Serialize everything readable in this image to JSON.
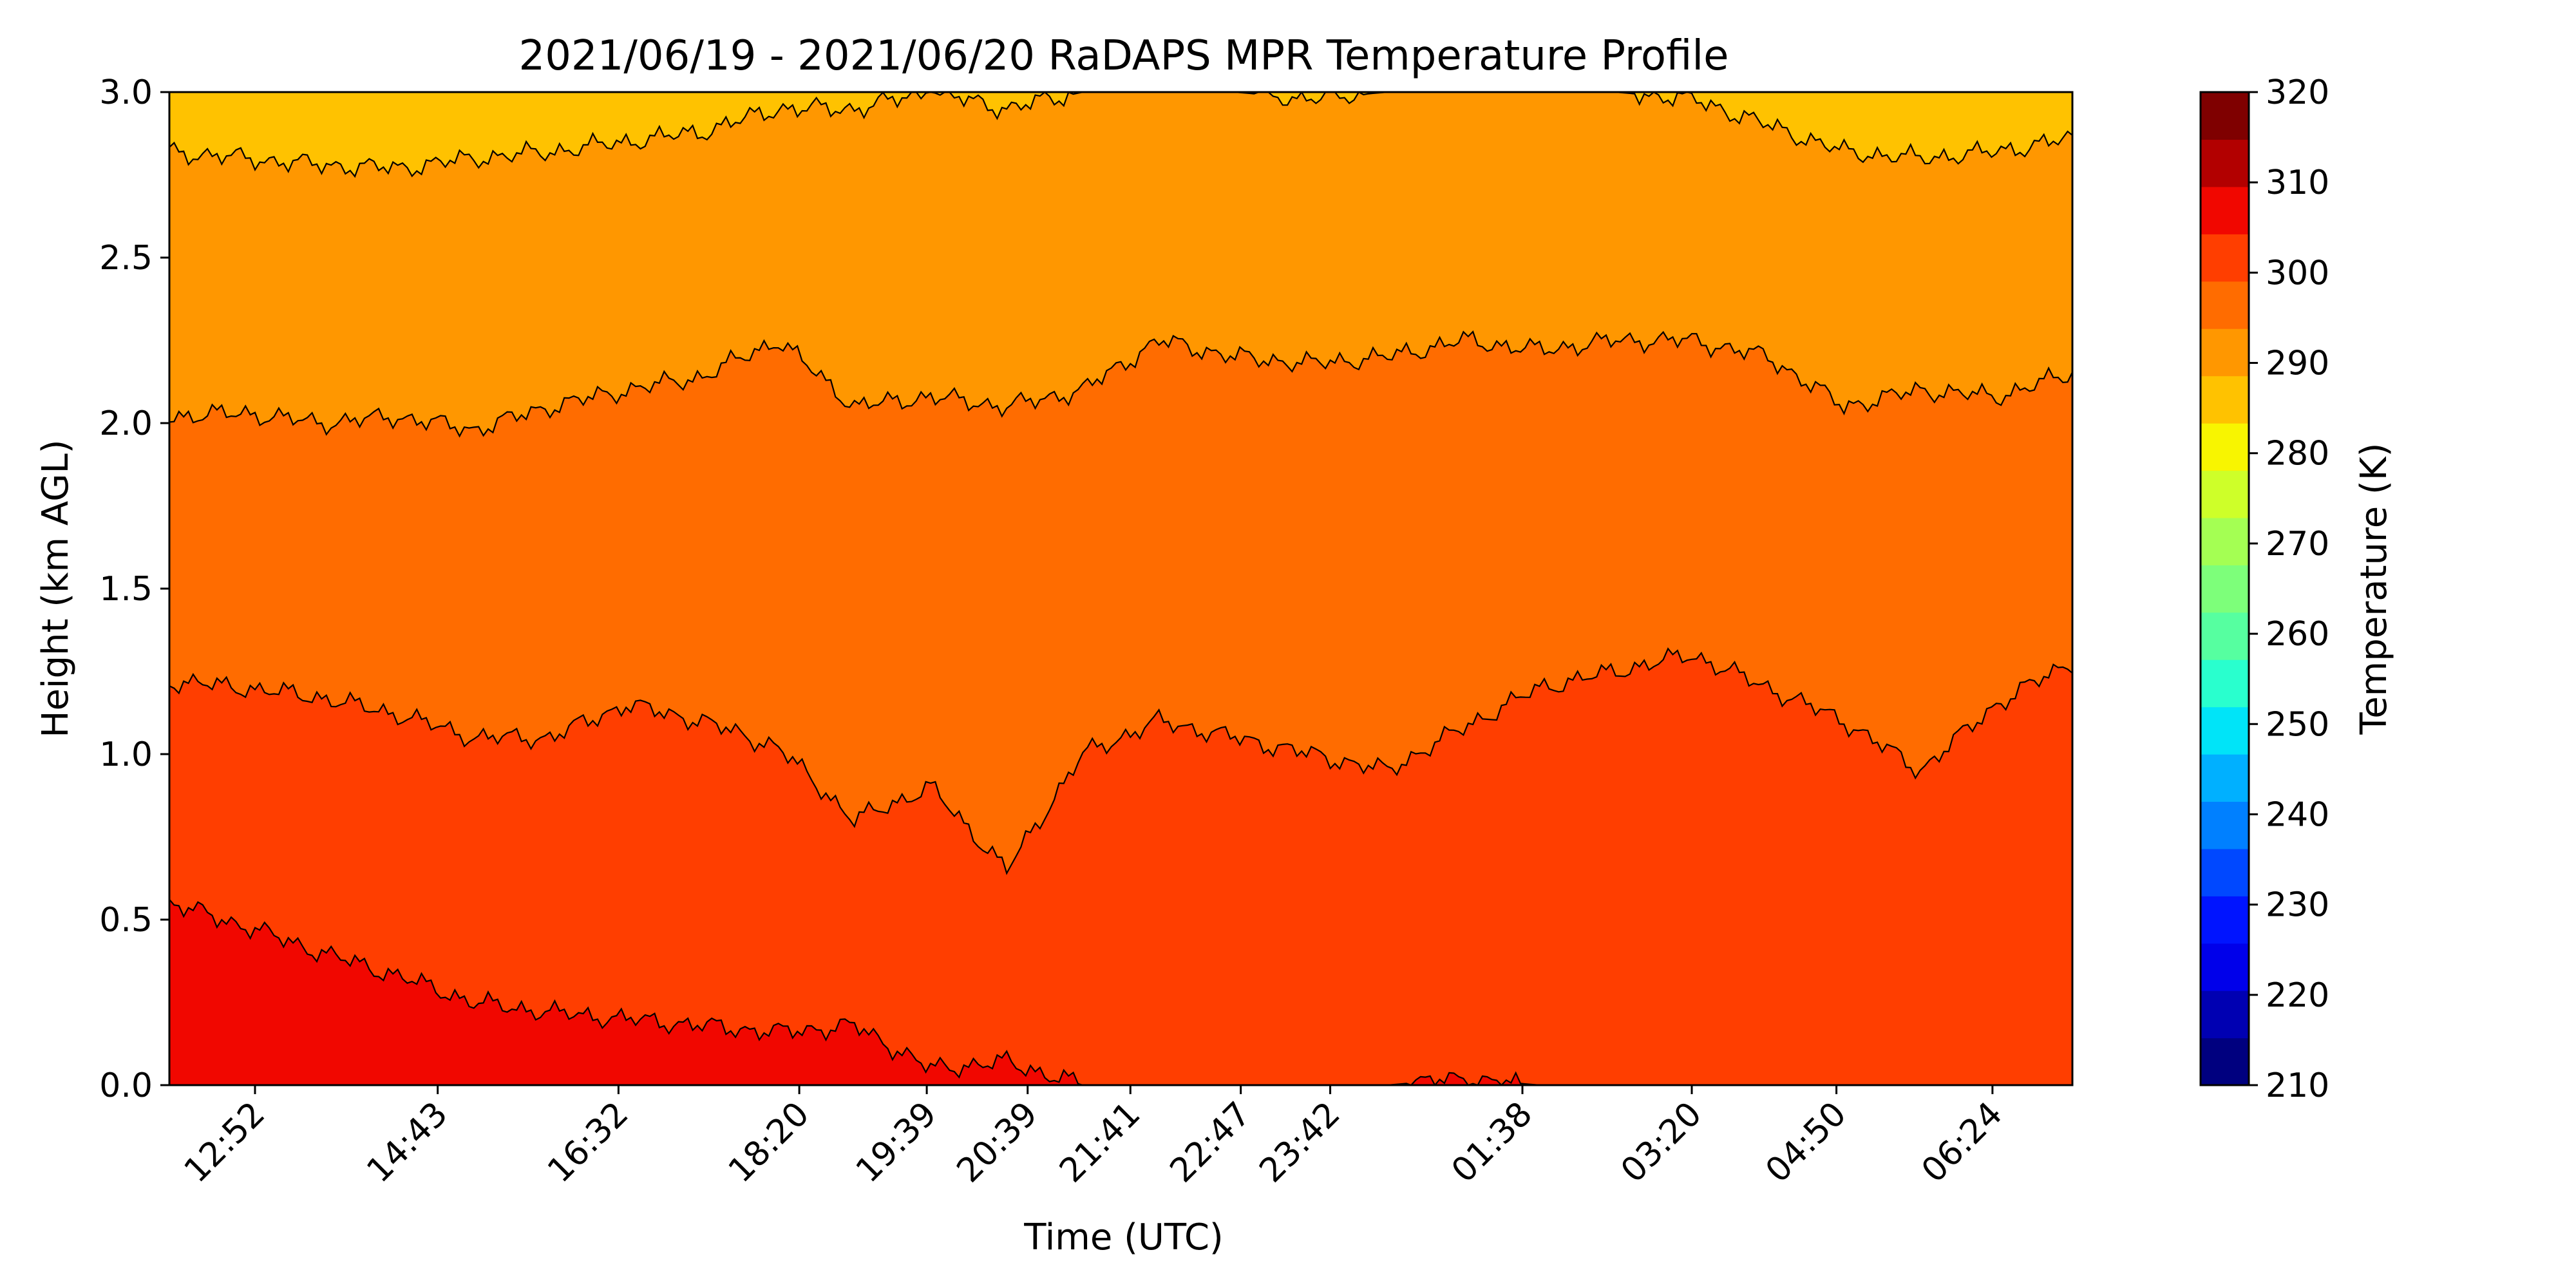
{
  "chart_data": {
    "type": "heatmap",
    "title": "2021/06/19 - 2021/06/20 RaDAPS MPR Temperature Profile",
    "xlabel": "Time (UTC)",
    "ylabel": "Height (km AGL)",
    "x_tick_labels": [
      "12:52",
      "14:43",
      "16:32",
      "18:20",
      "19:39",
      "20:39",
      "21:41",
      "22:47",
      "23:42",
      "01:38",
      "03:20",
      "04:50",
      "06:24"
    ],
    "x_tick_fractions": [
      0.045,
      0.141,
      0.236,
      0.331,
      0.398,
      0.451,
      0.505,
      0.563,
      0.61,
      0.711,
      0.8,
      0.876,
      0.958
    ],
    "y_ticks": [
      "0.0",
      "0.5",
      "1.0",
      "1.5",
      "2.0",
      "2.5",
      "3.0"
    ],
    "ylim": [
      0,
      3
    ],
    "colorbar": {
      "label": "Temperature (K)",
      "range": [
        210,
        320
      ],
      "step": 5,
      "tick_labels": [
        "210",
        "220",
        "230",
        "240",
        "250",
        "260",
        "270",
        "280",
        "290",
        "300",
        "310",
        "320"
      ],
      "colors": [
        "#00007f",
        "#0000b2",
        "#0000ea",
        "#0014ff",
        "#0048ff",
        "#0080ff",
        "#00b0ff",
        "#00e4f8",
        "#29ffce",
        "#56ffa0",
        "#7dff7a",
        "#a4ff53",
        "#ceff29",
        "#f8f500",
        "#ffc200",
        "#ff9700",
        "#ff6c00",
        "#ff3e00",
        "#f10700",
        "#b20000",
        "#7f0000"
      ]
    },
    "contour_levels_K": [
      300,
      295,
      290,
      285,
      280
    ],
    "contour_boundaries": [
      {
        "between_K": [
          295,
          300
        ],
        "heights_km": [
          0.55,
          0.48,
          0.4,
          0.33,
          0.25,
          0.22,
          0.2,
          0.18,
          0.16,
          0.18,
          0.05,
          0.07,
          0.0,
          0.0,
          0.0,
          0.0,
          0.0,
          0.02,
          0.0,
          0.0,
          0.0,
          0.0,
          0.0,
          0.0,
          0.0,
          0.0
        ]
      },
      {
        "between_K": [
          290,
          295
        ],
        "heights_km": [
          1.22,
          1.2,
          1.17,
          1.12,
          1.05,
          1.05,
          1.15,
          1.1,
          1.02,
          0.8,
          0.9,
          0.65,
          1.0,
          1.1,
          1.05,
          1.0,
          0.95,
          1.08,
          1.2,
          1.25,
          1.3,
          1.2,
          1.1,
          0.95,
          1.15,
          1.28
        ]
      },
      {
        "between_K": [
          285,
          290
        ],
        "heights_km": [
          2.02,
          2.03,
          2.0,
          2.02,
          1.98,
          2.05,
          2.1,
          2.14,
          2.25,
          2.05,
          2.08,
          2.05,
          2.1,
          2.25,
          2.2,
          2.18,
          2.2,
          2.25,
          2.22,
          2.25,
          2.25,
          2.2,
          2.05,
          2.1,
          2.08,
          2.15
        ]
      },
      {
        "between_K": [
          280,
          285
        ],
        "heights_km": [
          2.82,
          2.8,
          2.78,
          2.77,
          2.8,
          2.82,
          2.85,
          2.88,
          2.95,
          2.95,
          3.0,
          2.95,
          3.0,
          3.0,
          3.0,
          2.98,
          3.0,
          3.0,
          3.0,
          3.0,
          2.98,
          2.9,
          2.82,
          2.8,
          2.82,
          2.86
        ]
      }
    ]
  }
}
